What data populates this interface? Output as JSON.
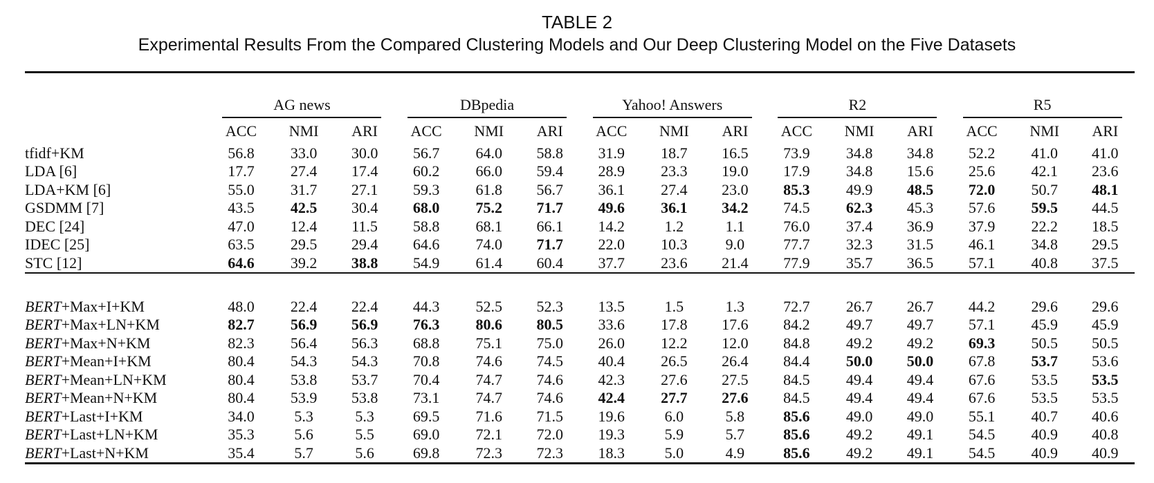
{
  "caption": {
    "label": "TABLE 2",
    "title": "Experimental Results From the Compared Clustering Models and Our Deep Clustering Model on the Five Datasets"
  },
  "datasets": [
    "AG news",
    "DBpedia",
    "Yahoo! Answers",
    "R2",
    "R5"
  ],
  "metrics": [
    "ACC",
    "NMI",
    "ARI"
  ],
  "baseline_rows": [
    {
      "method": "tfidf+KM",
      "values": [
        "56.8",
        "33.0",
        "30.0",
        "56.7",
        "64.0",
        "58.8",
        "31.9",
        "18.7",
        "16.5",
        "73.9",
        "34.8",
        "34.8",
        "52.2",
        "41.0",
        "41.0"
      ],
      "bold": []
    },
    {
      "method": "LDA [6]",
      "values": [
        "17.7",
        "27.4",
        "17.4",
        "60.2",
        "66.0",
        "59.4",
        "28.9",
        "23.3",
        "19.0",
        "17.9",
        "34.8",
        "15.6",
        "25.6",
        "42.1",
        "23.6"
      ],
      "bold": []
    },
    {
      "method": "LDA+KM [6]",
      "values": [
        "55.0",
        "31.7",
        "27.1",
        "59.3",
        "61.8",
        "56.7",
        "36.1",
        "27.4",
        "23.0",
        "85.3",
        "49.9",
        "48.5",
        "72.0",
        "50.7",
        "48.1"
      ],
      "bold": [
        9,
        11,
        12,
        14
      ]
    },
    {
      "method": "GSDMM [7]",
      "values": [
        "43.5",
        "42.5",
        "30.4",
        "68.0",
        "75.2",
        "71.7",
        "49.6",
        "36.1",
        "34.2",
        "74.5",
        "62.3",
        "45.3",
        "57.6",
        "59.5",
        "44.5"
      ],
      "bold": [
        1,
        3,
        4,
        5,
        6,
        7,
        8,
        10,
        13
      ]
    },
    {
      "method": "DEC [24]",
      "values": [
        "47.0",
        "12.4",
        "11.5",
        "58.8",
        "68.1",
        "66.1",
        "14.2",
        "1.2",
        "1.1",
        "76.0",
        "37.4",
        "36.9",
        "37.9",
        "22.2",
        "18.5"
      ],
      "bold": []
    },
    {
      "method": "IDEC [25]",
      "values": [
        "63.5",
        "29.5",
        "29.4",
        "64.6",
        "74.0",
        "71.7",
        "22.0",
        "10.3",
        "9.0",
        "77.7",
        "32.3",
        "31.5",
        "46.1",
        "34.8",
        "29.5"
      ],
      "bold": [
        5
      ]
    },
    {
      "method": "STC [12]",
      "values": [
        "64.6",
        "39.2",
        "38.8",
        "54.9",
        "61.4",
        "60.4",
        "37.7",
        "23.6",
        "21.4",
        "77.9",
        "35.7",
        "36.5",
        "57.1",
        "40.8",
        "37.5"
      ],
      "bold": [
        0,
        2
      ]
    }
  ],
  "bert_rows": [
    {
      "prefix": "BERT",
      "suffix": "+Max+I+KM",
      "values": [
        "48.0",
        "22.4",
        "22.4",
        "44.3",
        "52.5",
        "52.3",
        "13.5",
        "1.5",
        "1.3",
        "72.7",
        "26.7",
        "26.7",
        "44.2",
        "29.6",
        "29.6"
      ],
      "bold": []
    },
    {
      "prefix": "BERT",
      "suffix": "+Max+LN+KM",
      "values": [
        "82.7",
        "56.9",
        "56.9",
        "76.3",
        "80.6",
        "80.5",
        "33.6",
        "17.8",
        "17.6",
        "84.2",
        "49.7",
        "49.7",
        "57.1",
        "45.9",
        "45.9"
      ],
      "bold": [
        0,
        1,
        2,
        3,
        4,
        5
      ]
    },
    {
      "prefix": "BERT",
      "suffix": "+Max+N+KM",
      "values": [
        "82.3",
        "56.4",
        "56.3",
        "68.8",
        "75.1",
        "75.0",
        "26.0",
        "12.2",
        "12.0",
        "84.8",
        "49.2",
        "49.2",
        "69.3",
        "50.5",
        "50.5"
      ],
      "bold": [
        12
      ]
    },
    {
      "prefix": "BERT",
      "suffix": "+Mean+I+KM",
      "values": [
        "80.4",
        "54.3",
        "54.3",
        "70.8",
        "74.6",
        "74.5",
        "40.4",
        "26.5",
        "26.4",
        "84.4",
        "50.0",
        "50.0",
        "67.8",
        "53.7",
        "53.6"
      ],
      "bold": [
        10,
        11,
        13
      ]
    },
    {
      "prefix": "BERT",
      "suffix": "+Mean+LN+KM",
      "values": [
        "80.4",
        "53.8",
        "53.7",
        "70.4",
        "74.7",
        "74.6",
        "42.3",
        "27.6",
        "27.5",
        "84.5",
        "49.4",
        "49.4",
        "67.6",
        "53.5",
        "53.5"
      ],
      "bold": [
        14
      ]
    },
    {
      "prefix": "BERT",
      "suffix": "+Mean+N+KM",
      "values": [
        "80.4",
        "53.9",
        "53.8",
        "73.1",
        "74.7",
        "74.6",
        "42.4",
        "27.7",
        "27.6",
        "84.5",
        "49.4",
        "49.4",
        "67.6",
        "53.5",
        "53.5"
      ],
      "bold": [
        6,
        7,
        8
      ]
    },
    {
      "prefix": "BERT",
      "suffix": "+Last+I+KM",
      "values": [
        "34.0",
        "5.3",
        "5.3",
        "69.5",
        "71.6",
        "71.5",
        "19.6",
        "6.0",
        "5.8",
        "85.6",
        "49.0",
        "49.0",
        "55.1",
        "40.7",
        "40.6"
      ],
      "bold": [
        9
      ]
    },
    {
      "prefix": "BERT",
      "suffix": "+Last+LN+KM",
      "values": [
        "35.3",
        "5.6",
        "5.5",
        "69.0",
        "72.1",
        "72.0",
        "19.3",
        "5.9",
        "5.7",
        "85.6",
        "49.2",
        "49.1",
        "54.5",
        "40.9",
        "40.8"
      ],
      "bold": [
        9
      ]
    },
    {
      "prefix": "BERT",
      "suffix": "+Last+N+KM",
      "values": [
        "35.4",
        "5.7",
        "5.6",
        "69.8",
        "72.3",
        "72.3",
        "18.3",
        "5.0",
        "4.9",
        "85.6",
        "49.2",
        "49.1",
        "54.5",
        "40.9",
        "40.9"
      ],
      "bold": [
        9
      ]
    }
  ]
}
